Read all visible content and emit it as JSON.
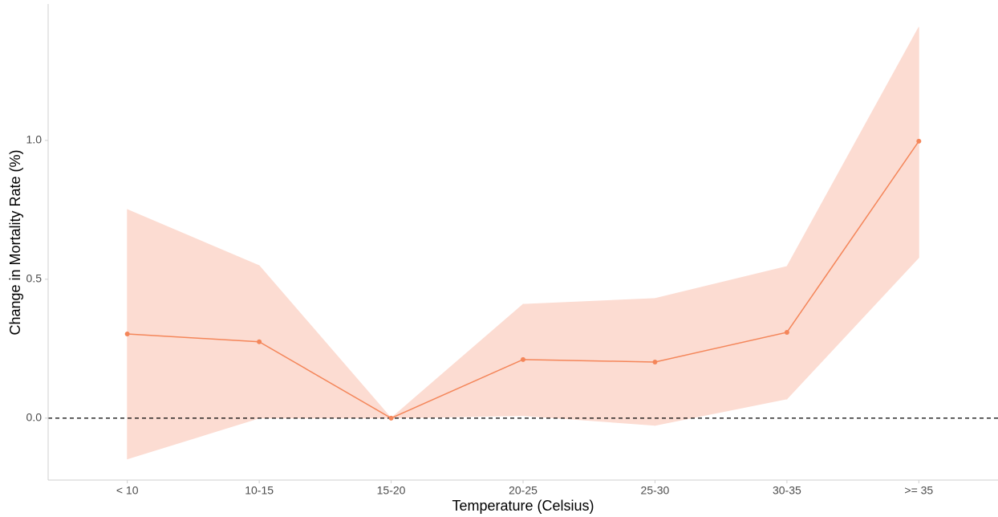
{
  "chart_data": {
    "type": "line",
    "x_label": "Temperature (Celsius)",
    "y_label": "Change in Mortality Rate (%)",
    "categories": [
      "< 10",
      "10-15",
      "15-20",
      "20-25",
      "25-30",
      "30-35",
      ">= 35"
    ],
    "values": [
      0.303,
      0.275,
      0,
      0.211,
      0.202,
      0.309,
      0.997
    ],
    "upper": [
      0.751,
      0.549,
      0,
      0.41,
      0.431,
      0.546,
      1.408
    ],
    "lower": [
      -0.147,
      0.0,
      0,
      0.009,
      -0.026,
      0.069,
      0.578
    ],
    "color": "#f4865a",
    "band_color": "#fcdcd2",
    "ylim": [
      -0.223,
      1.491
    ],
    "yticks": [
      {
        "value": 0,
        "label": "0.0"
      },
      {
        "value": 0.5,
        "label": "0.5"
      },
      {
        "value": 1,
        "label": "1.0"
      }
    ],
    "reference_line": 0,
    "grid": false
  }
}
